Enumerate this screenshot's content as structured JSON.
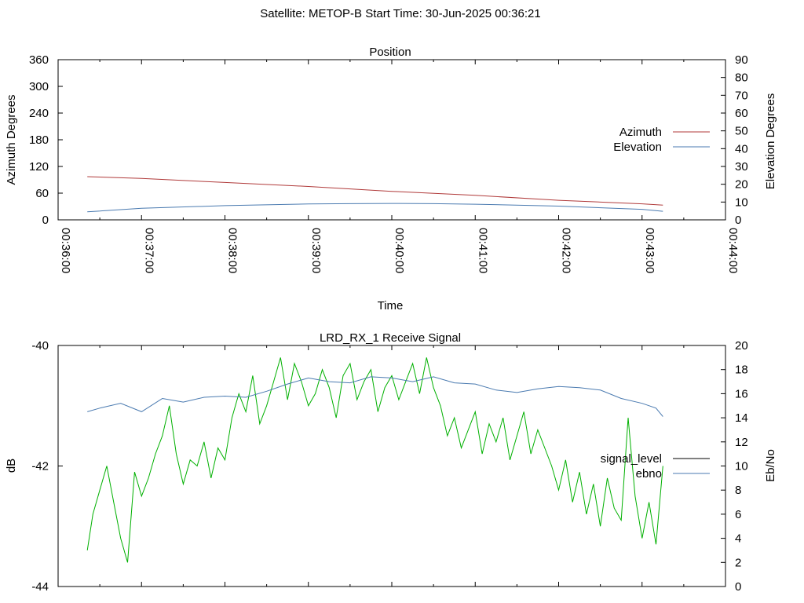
{
  "figure": {
    "title": "Satellite: METOP-B    Start Time: 30-Jun-2025 00:36:21"
  },
  "colors": {
    "azimuth": "#b03a3a",
    "elevation": "#4a7ab0",
    "signal_level": "#00b000",
    "signal_level_legend": "#000000",
    "ebno": "#4a7ab0",
    "background": "#ffffff"
  },
  "chart_data": [
    {
      "type": "line",
      "title": "Position",
      "xlabel": "Time",
      "ylabel": "Azimuth Degrees",
      "y2label": "Elevation Degrees",
      "x_ticks": [
        "00:36:00",
        "00:37:00",
        "00:38:00",
        "00:39:00",
        "00:40:00",
        "00:41:00",
        "00:42:00",
        "00:43:00",
        "00:44:00"
      ],
      "xlim": [
        "00:36:00",
        "00:44:00"
      ],
      "ylim": [
        0,
        360
      ],
      "y_ticks": [
        0,
        60,
        120,
        180,
        240,
        300,
        360
      ],
      "y2lim": [
        0,
        90
      ],
      "y2_ticks": [
        0,
        10,
        20,
        30,
        40,
        50,
        60,
        70,
        80,
        90
      ],
      "legend": "right",
      "grid": false,
      "series": [
        {
          "name": "Azimuth",
          "axis": "y",
          "x": [
            "00:36:21",
            "00:37:00",
            "00:38:00",
            "00:39:00",
            "00:40:00",
            "00:41:00",
            "00:42:00",
            "00:43:00",
            "00:43:15"
          ],
          "y": [
            97,
            93,
            84,
            75,
            64,
            55,
            44,
            36,
            33
          ]
        },
        {
          "name": "Elevation",
          "axis": "y2",
          "x": [
            "00:36:21",
            "00:37:00",
            "00:38:00",
            "00:39:00",
            "00:39:30",
            "00:40:00",
            "00:40:30",
            "00:41:00",
            "00:42:00",
            "00:43:00",
            "00:43:15"
          ],
          "y": [
            4.5,
            6.5,
            8.0,
            8.9,
            9.1,
            9.2,
            9.1,
            8.8,
            7.7,
            5.9,
            4.8
          ]
        }
      ]
    },
    {
      "type": "line",
      "title": "LRD_RX_1 Receive Signal",
      "xlabel": "",
      "ylabel": "dB",
      "y2label": "Eb/No",
      "x_ticks": [
        "00:36:00",
        "00:37:00",
        "00:38:00",
        "00:39:00",
        "00:40:00",
        "00:41:00",
        "00:42:00",
        "00:43:00",
        "00:44:00"
      ],
      "xlim": [
        "00:36:00",
        "00:44:00"
      ],
      "ylim": [
        -44,
        -40
      ],
      "y_ticks": [
        -44,
        -42,
        -40
      ],
      "y2lim": [
        0,
        20
      ],
      "y2_ticks": [
        0,
        2,
        4,
        6,
        8,
        10,
        12,
        14,
        16,
        18,
        20
      ],
      "legend": "right",
      "grid": false,
      "series": [
        {
          "name": "signal_level",
          "axis": "y",
          "x": [
            "00:36:21",
            "00:36:25",
            "00:36:30",
            "00:36:35",
            "00:36:40",
            "00:36:45",
            "00:36:50",
            "00:36:55",
            "00:37:00",
            "00:37:05",
            "00:37:10",
            "00:37:15",
            "00:37:20",
            "00:37:25",
            "00:37:30",
            "00:37:35",
            "00:37:40",
            "00:37:45",
            "00:37:50",
            "00:37:55",
            "00:38:00",
            "00:38:05",
            "00:38:10",
            "00:38:15",
            "00:38:20",
            "00:38:25",
            "00:38:30",
            "00:38:35",
            "00:38:40",
            "00:38:45",
            "00:38:50",
            "00:38:55",
            "00:39:00",
            "00:39:05",
            "00:39:10",
            "00:39:15",
            "00:39:20",
            "00:39:25",
            "00:39:30",
            "00:39:35",
            "00:39:40",
            "00:39:45",
            "00:39:50",
            "00:39:55",
            "00:40:00",
            "00:40:05",
            "00:40:10",
            "00:40:15",
            "00:40:20",
            "00:40:25",
            "00:40:30",
            "00:40:35",
            "00:40:40",
            "00:40:45",
            "00:40:50",
            "00:40:55",
            "00:41:00",
            "00:41:05",
            "00:41:10",
            "00:41:15",
            "00:41:20",
            "00:41:25",
            "00:41:30",
            "00:41:35",
            "00:41:40",
            "00:41:45",
            "00:41:50",
            "00:41:55",
            "00:42:00",
            "00:42:05",
            "00:42:10",
            "00:42:15",
            "00:42:20",
            "00:42:25",
            "00:42:30",
            "00:42:35",
            "00:42:40",
            "00:42:45",
            "00:42:50",
            "00:42:55",
            "00:43:00",
            "00:43:05",
            "00:43:10",
            "00:43:15"
          ],
          "y": [
            -43.4,
            -42.8,
            -42.4,
            -42.0,
            -42.6,
            -43.2,
            -43.6,
            -42.1,
            -42.5,
            -42.2,
            -41.8,
            -41.5,
            -41.0,
            -41.8,
            -42.3,
            -41.9,
            -42.0,
            -41.6,
            -42.2,
            -41.7,
            -41.9,
            -41.2,
            -40.8,
            -41.1,
            -40.5,
            -41.3,
            -41.0,
            -40.6,
            -40.2,
            -40.9,
            -40.3,
            -40.6,
            -41.0,
            -40.8,
            -40.4,
            -40.7,
            -41.2,
            -40.5,
            -40.3,
            -40.9,
            -40.6,
            -40.4,
            -41.1,
            -40.7,
            -40.5,
            -40.9,
            -40.6,
            -40.3,
            -40.8,
            -40.2,
            -40.7,
            -41.0,
            -41.5,
            -41.2,
            -41.7,
            -41.4,
            -41.1,
            -41.8,
            -41.3,
            -41.6,
            -41.2,
            -41.9,
            -41.5,
            -41.1,
            -41.8,
            -41.4,
            -41.7,
            -42.0,
            -42.4,
            -41.9,
            -42.6,
            -42.1,
            -42.8,
            -42.3,
            -43.0,
            -42.2,
            -42.7,
            -42.9,
            -41.2,
            -42.5,
            -43.2,
            -42.6,
            -43.3,
            -42.0
          ],
          "legend_color": "#000000"
        },
        {
          "name": "ebno",
          "axis": "y2",
          "x": [
            "00:36:21",
            "00:36:30",
            "00:36:45",
            "00:37:00",
            "00:37:15",
            "00:37:30",
            "00:37:45",
            "00:38:00",
            "00:38:15",
            "00:38:30",
            "00:38:45",
            "00:39:00",
            "00:39:15",
            "00:39:30",
            "00:39:45",
            "00:40:00",
            "00:40:15",
            "00:40:30",
            "00:40:45",
            "00:41:00",
            "00:41:15",
            "00:41:30",
            "00:41:45",
            "00:42:00",
            "00:42:15",
            "00:42:30",
            "00:42:45",
            "00:43:00",
            "00:43:10",
            "00:43:15"
          ],
          "y": [
            14.5,
            14.8,
            15.2,
            14.5,
            15.6,
            15.3,
            15.7,
            15.8,
            15.7,
            16.2,
            16.8,
            17.3,
            17.0,
            16.9,
            17.4,
            17.3,
            17.0,
            17.4,
            16.9,
            16.8,
            16.3,
            16.1,
            16.4,
            16.6,
            16.5,
            16.3,
            15.6,
            15.2,
            14.8,
            14.1
          ]
        }
      ]
    }
  ]
}
